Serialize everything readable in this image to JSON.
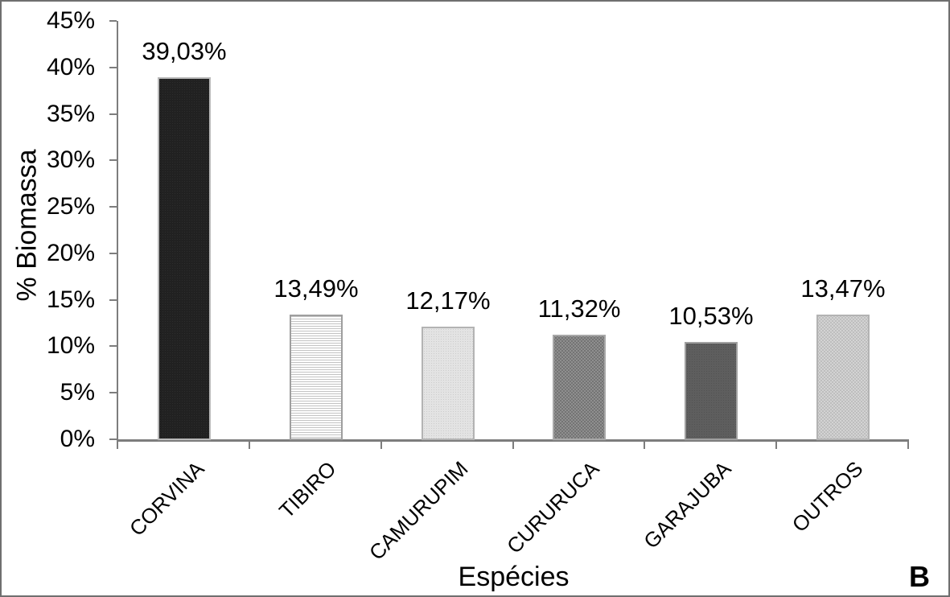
{
  "figure_label": "B",
  "colors": {
    "axis": "#7d7d7d",
    "frame": "#6f6f6f",
    "text": "#000000",
    "background": "#ffffff",
    "bar_corvina": "#212121",
    "bar_tibiro_lines": "#c3c3c3",
    "bar_camurupim": "#e0e0e0",
    "bar_cururuca": "#848484",
    "bar_garajuba": "#5e5e5e",
    "bar_outros": "#cbcbcb"
  },
  "chart_data": {
    "type": "bar",
    "title": "",
    "xlabel": "Espécies",
    "ylabel": "% Biomassa",
    "ylim": [
      0,
      45
    ],
    "ytick_step": 5,
    "ytick_labels": [
      "0%",
      "5%",
      "10%",
      "15%",
      "20%",
      "25%",
      "30%",
      "35%",
      "40%",
      "45%"
    ],
    "grid": false,
    "legend": false,
    "categories": [
      "CORVINA",
      "TIBIRO",
      "CAMURUPIM",
      "CURURUCA",
      "GARAJUBA",
      "OUTROS"
    ],
    "values": [
      39.03,
      13.49,
      12.17,
      11.32,
      10.53,
      13.47
    ],
    "data_labels": [
      "39,03%",
      "13,49%",
      "12,17%",
      "11,32%",
      "10,53%",
      "13,47%"
    ],
    "bar_styles": [
      {
        "pattern": "solid-dark",
        "border": "#b9b9b9"
      },
      {
        "pattern": "hlines",
        "border": "#9e9e9e"
      },
      {
        "pattern": "dots-light",
        "border": "#b3b3b3"
      },
      {
        "pattern": "checker-mid",
        "border": "#a8a8a8"
      },
      {
        "pattern": "solid-darkgray",
        "border": "#a0a0a0"
      },
      {
        "pattern": "checker-light",
        "border": "#b3b3b3"
      }
    ]
  }
}
